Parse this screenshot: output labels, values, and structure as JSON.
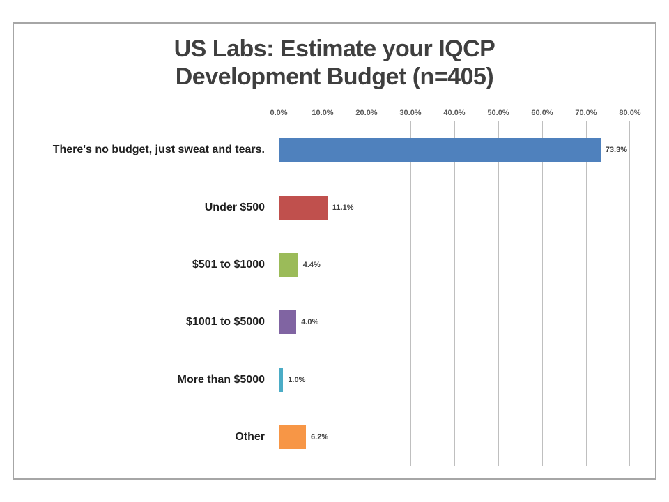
{
  "title_line1": "US Labs: Estimate your IQCP",
  "title_line2": "Development Budget (n=405)",
  "chart_data": {
    "type": "bar",
    "orientation": "horizontal",
    "title": "US Labs: Estimate your IQCP Development Budget (n=405)",
    "categories": [
      "There's no budget, just sweat and tears.",
      "Under $500",
      "$501 to $1000",
      "$1001 to $5000",
      "More than $5000",
      "Other"
    ],
    "values": [
      73.3,
      11.1,
      4.4,
      4.0,
      1.0,
      6.2
    ],
    "value_labels": [
      "73.3%",
      "11.1%",
      "4.4%",
      "4.0%",
      "1.0%",
      "6.2%"
    ],
    "bar_colors": [
      "#4F81BD",
      "#C0504D",
      "#9BBB59",
      "#8064A2",
      "#4BACC6",
      "#F79646"
    ],
    "xlim": [
      0,
      80
    ],
    "x_ticks": [
      "0.0%",
      "10.0%",
      "20.0%",
      "30.0%",
      "40.0%",
      "50.0%",
      "60.0%",
      "70.0%",
      "80.0%"
    ],
    "x_tick_values": [
      0,
      10,
      20,
      30,
      40,
      50,
      60,
      70,
      80
    ],
    "xlabel": "",
    "ylabel": "",
    "grid": true,
    "gridline_color": "#BFBFBF",
    "legend": "none",
    "plot_background": "#FFFFFF"
  }
}
